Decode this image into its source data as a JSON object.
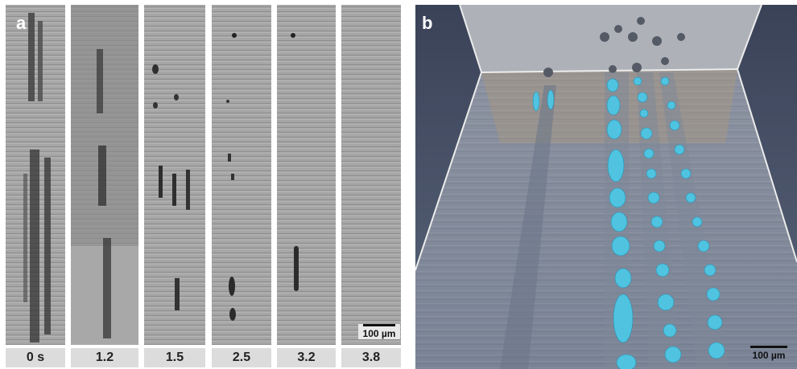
{
  "panel_a": {
    "label": "a",
    "time_labels": [
      "0 s",
      "1.2",
      "1.5",
      "2.5",
      "3.2",
      "3.8"
    ],
    "scale_bar": "100 µm"
  },
  "panel_b": {
    "label": "b",
    "scale_bar": "100 µm",
    "colors": {
      "droplet": "#4fc3e0",
      "background": "#6f7a8c",
      "frame": "#e6e6e6"
    }
  }
}
